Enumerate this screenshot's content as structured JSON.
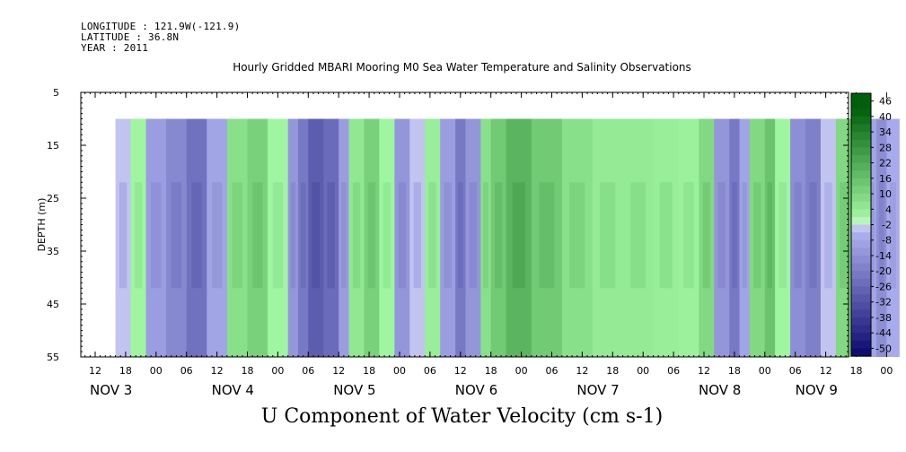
{
  "header": {
    "longitude": "LONGITUDE : 121.9W(-121.9)",
    "latitude": "LATITUDE : 36.8N",
    "year": "YEAR : 2011"
  },
  "chart_data": {
    "type": "heatmap",
    "title": "Hourly Gridded MBARI Mooring M0 Sea Water Temperature and Salinity Observations",
    "xlabel": "U Component of Water Velocity (cm s-1)",
    "ylabel": "DEPTH (m)",
    "ylim": [
      55,
      5
    ],
    "yticks": [
      "5",
      "15",
      "25",
      "35",
      "45",
      "55"
    ],
    "xticks": [
      "12",
      "18",
      "00",
      "06",
      "12",
      "18",
      "00",
      "06",
      "12",
      "18",
      "00",
      "06",
      "12",
      "18",
      "00",
      "06",
      "12",
      "18",
      "00",
      "06",
      "12",
      "18",
      "00",
      "06",
      "12",
      "18",
      "00",
      "06",
      "12"
    ],
    "day_labels": [
      "NOV  3",
      "NOV  4",
      "NOV  5",
      "NOV  6",
      "NOV  7",
      "NOV  8",
      "NOV  9"
    ],
    "colorbar": {
      "levels": [
        "46",
        "40",
        "34",
        "28",
        "22",
        "16",
        "10",
        "4",
        "-2",
        "-8",
        "-14",
        "-20",
        "-26",
        "-32",
        "-38",
        "-44",
        "-50"
      ],
      "range": [
        -50,
        52
      ],
      "step": 3
    },
    "data_depth_range": [
      10,
      55
    ],
    "time_profiles": [
      {
        "hours": 16,
        "u": -2
      },
      {
        "hours": 19,
        "u": 4
      },
      {
        "hours": 22,
        "u": -8
      },
      {
        "hours": 26,
        "u": -14
      },
      {
        "hours": 30,
        "u": -20
      },
      {
        "hours": 34,
        "u": -6
      },
      {
        "hours": 38,
        "u": 10
      },
      {
        "hours": 42,
        "u": 14
      },
      {
        "hours": 46,
        "u": 4
      },
      {
        "hours": 50,
        "u": -10
      },
      {
        "hours": 52,
        "u": -18
      },
      {
        "hours": 54,
        "u": -26
      },
      {
        "hours": 57,
        "u": -22
      },
      {
        "hours": 60,
        "u": -8
      },
      {
        "hours": 62,
        "u": 8
      },
      {
        "hours": 65,
        "u": 14
      },
      {
        "hours": 68,
        "u": 4
      },
      {
        "hours": 71,
        "u": -10
      },
      {
        "hours": 74,
        "u": -2
      },
      {
        "hours": 77,
        "u": 6
      },
      {
        "hours": 80,
        "u": -8
      },
      {
        "hours": 83,
        "u": -18
      },
      {
        "hours": 85,
        "u": -10
      },
      {
        "hours": 88,
        "u": 10
      },
      {
        "hours": 90,
        "u": 16
      },
      {
        "hours": 93,
        "u": 22
      },
      {
        "hours": 98,
        "u": 16
      },
      {
        "hours": 104,
        "u": 10
      },
      {
        "hours": 110,
        "u": 7
      },
      {
        "hours": 116,
        "u": 7
      },
      {
        "hours": 122,
        "u": 6
      },
      {
        "hours": 127,
        "u": 5
      },
      {
        "hours": 131,
        "u": 12
      },
      {
        "hours": 134,
        "u": -10
      },
      {
        "hours": 137,
        "u": -18
      },
      {
        "hours": 139,
        "u": -6
      },
      {
        "hours": 141,
        "u": 12
      },
      {
        "hours": 144,
        "u": 18
      },
      {
        "hours": 146,
        "u": 4
      },
      {
        "hours": 149,
        "u": -12
      },
      {
        "hours": 152,
        "u": -16
      },
      {
        "hours": 155,
        "u": 0
      },
      {
        "hours": 158,
        "u": 12
      },
      {
        "hours": 161,
        "u": 8
      },
      {
        "hours": 164,
        "u": -6
      },
      {
        "hours": 166,
        "u": -12
      },
      {
        "hours": 168,
        "u": -4
      }
    ]
  }
}
